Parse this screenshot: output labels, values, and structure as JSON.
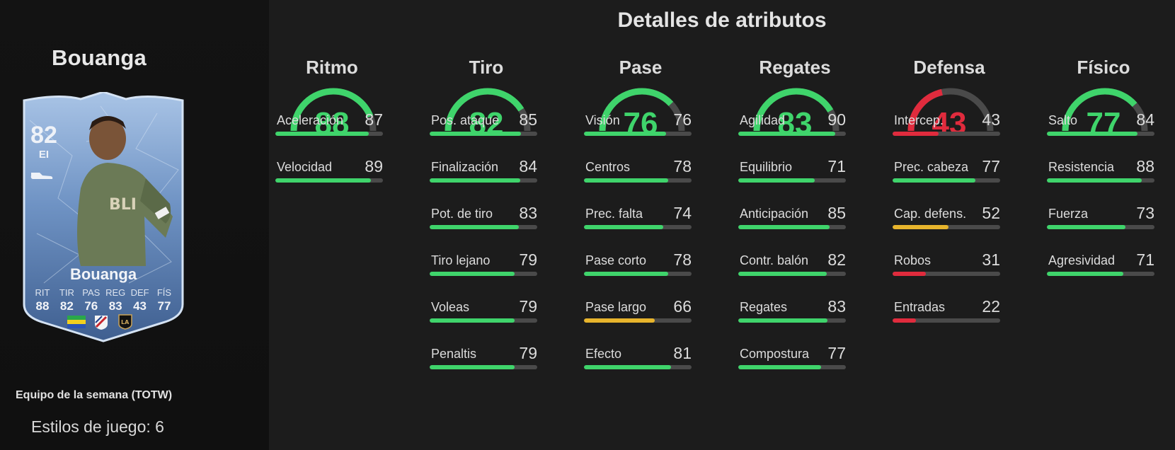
{
  "player": {
    "name": "Bouanga",
    "rating": "82",
    "position": "EI",
    "card_stats": [
      {
        "label": "RIT",
        "value": "88"
      },
      {
        "label": "TIR",
        "value": "82"
      },
      {
        "label": "PAS",
        "value": "76"
      },
      {
        "label": "REG",
        "value": "83"
      },
      {
        "label": "DEF",
        "value": "43"
      },
      {
        "label": "FÍS",
        "value": "77"
      }
    ],
    "promo": "Equipo de la semana (TOTW)",
    "playstyles": "Estilos de juego: 6"
  },
  "section_title": "Detalles de atributos",
  "colors": {
    "green": "#3fd46b",
    "yellow": "#e7b42c",
    "red": "#e02b3d",
    "track": "#4a4a4a"
  },
  "columns": [
    {
      "title": "Ritmo",
      "value": 88,
      "value_text": "88",
      "attributes": [
        {
          "name": "Aceleración",
          "value": 87,
          "value_text": "87"
        },
        {
          "name": "Velocidad",
          "value": 89,
          "value_text": "89"
        }
      ]
    },
    {
      "title": "Tiro",
      "value": 82,
      "value_text": "82",
      "attributes": [
        {
          "name": "Pos. ataque",
          "value": 85,
          "value_text": "85"
        },
        {
          "name": "Finalización",
          "value": 84,
          "value_text": "84"
        },
        {
          "name": "Pot. de tiro",
          "value": 83,
          "value_text": "83"
        },
        {
          "name": "Tiro lejano",
          "value": 79,
          "value_text": "79"
        },
        {
          "name": "Voleas",
          "value": 79,
          "value_text": "79"
        },
        {
          "name": "Penaltis",
          "value": 79,
          "value_text": "79"
        }
      ]
    },
    {
      "title": "Pase",
      "value": 76,
      "value_text": "76",
      "attributes": [
        {
          "name": "Visión",
          "value": 76,
          "value_text": "76"
        },
        {
          "name": "Centros",
          "value": 78,
          "value_text": "78"
        },
        {
          "name": "Prec. falta",
          "value": 74,
          "value_text": "74"
        },
        {
          "name": "Pase corto",
          "value": 78,
          "value_text": "78"
        },
        {
          "name": "Pase largo",
          "value": 66,
          "value_text": "66"
        },
        {
          "name": "Efecto",
          "value": 81,
          "value_text": "81"
        }
      ]
    },
    {
      "title": "Regates",
      "value": 83,
      "value_text": "83",
      "attributes": [
        {
          "name": "Agilidad",
          "value": 90,
          "value_text": "90"
        },
        {
          "name": "Equilibrio",
          "value": 71,
          "value_text": "71"
        },
        {
          "name": "Anticipación",
          "value": 85,
          "value_text": "85"
        },
        {
          "name": "Contr. balón",
          "value": 82,
          "value_text": "82"
        },
        {
          "name": "Regates",
          "value": 83,
          "value_text": "83"
        },
        {
          "name": "Compostura",
          "value": 77,
          "value_text": "77"
        }
      ]
    },
    {
      "title": "Defensa",
      "value": 43,
      "value_text": "43",
      "attributes": [
        {
          "name": "Intercep.",
          "value": 43,
          "value_text": "43"
        },
        {
          "name": "Prec. cabeza",
          "value": 77,
          "value_text": "77"
        },
        {
          "name": "Cap. defens.",
          "value": 52,
          "value_text": "52"
        },
        {
          "name": "Robos",
          "value": 31,
          "value_text": "31"
        },
        {
          "name": "Entradas",
          "value": 22,
          "value_text": "22"
        }
      ]
    },
    {
      "title": "Físico",
      "value": 77,
      "value_text": "77",
      "attributes": [
        {
          "name": "Salto",
          "value": 84,
          "value_text": "84"
        },
        {
          "name": "Resistencia",
          "value": 88,
          "value_text": "88"
        },
        {
          "name": "Fuerza",
          "value": 73,
          "value_text": "73"
        },
        {
          "name": "Agresividad",
          "value": 71,
          "value_text": "71"
        }
      ]
    }
  ],
  "icons": {
    "boot": "boot-icon",
    "flag": "gabon-flag-icon",
    "league": "mls-badge-icon",
    "club": "lafc-badge-icon"
  }
}
